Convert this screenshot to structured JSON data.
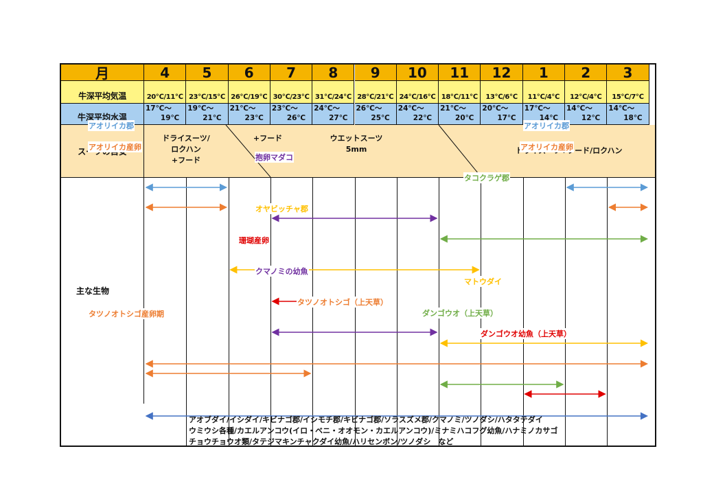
{
  "header": {
    "month_label": "月",
    "months": [
      "4",
      "5",
      "6",
      "7",
      "8",
      "9",
      "10",
      "11",
      "12",
      "1",
      "2",
      "3"
    ],
    "air_label": "牛深平均気温",
    "air_temps": [
      "20℃/11℃",
      "23℃/15℃",
      "26℃/19℃",
      "30℃/23℃",
      "31℃/24℃",
      "28℃/21℃",
      "24℃/16℃",
      "18℃/11℃",
      "13℃/6℃",
      "11℃/4℃",
      "12℃/4℃",
      "15℃/7℃"
    ],
    "water_label": "牛深平均水温",
    "water_temps": [
      "17℃～\n      19℃",
      "19℃～\n      21℃",
      "21℃～\n      23℃",
      "23℃～\n      26℃",
      "24℃～\n      27℃",
      "26℃～\n      25℃",
      "24℃～\n      22℃",
      "21℃～\n      20℃",
      "20℃～\n      17℃",
      "17℃～\n      14℃",
      "14℃～\n      12℃",
      "14℃～\n      18℃"
    ]
  },
  "suit": {
    "label": "スーツの目安",
    "text_drysuit_spring": "ドライスーツ/\nロクハン\n+フード",
    "text_hood": "+フード",
    "text_wetsuit": "ウエットスーツ\n5mm",
    "text_drysuit_winter": "ドライスーツ+フード/ロクハン"
  },
  "creatures": {
    "label": "主な生物",
    "colors": {
      "blue": "#5b9bd5",
      "orange": "#ed7d31",
      "purple": "#7030a0",
      "green": "#70ad47",
      "gold": "#ffc000",
      "red": "#e00000",
      "navy": "#4472c4"
    },
    "arrows": [
      {
        "label": "アオリイカ郡",
        "color": "blue",
        "segments": [
          [
            4,
            5
          ],
          [
            2,
            3
          ]
        ],
        "labels_at": [
          4,
          2
        ]
      },
      {
        "label": "アオリイカ産卵",
        "color": "orange",
        "segments": [
          [
            4,
            5
          ],
          [
            3,
            3
          ]
        ],
        "labels_at": [
          4,
          2
        ]
      },
      {
        "label": "抱卵マダコ",
        "color": "purple",
        "segments": [
          [
            7,
            10
          ]
        ],
        "labels_at": [
          8
        ]
      },
      {
        "label": "タコクラゲ郡",
        "color": "green",
        "segments": [
          [
            11,
            3
          ]
        ],
        "labels_at": [
          1
        ]
      },
      {
        "label": "オヤビッチャ郡",
        "color": "gold",
        "segments": [
          [
            6,
            11
          ]
        ],
        "labels_at": [
          8
        ]
      },
      {
        "label": "珊瑚産卵",
        "color": "red",
        "segments": [
          [
            7,
            8
          ]
        ],
        "labels_at": [
          7
        ]
      },
      {
        "label": "クマノミの幼魚",
        "color": "purple",
        "segments": [
          [
            7,
            10
          ]
        ],
        "labels_at": [
          8
        ]
      },
      {
        "label": "マトウダイ",
        "color": "gold",
        "segments": [
          [
            11,
            3
          ]
        ],
        "labels_at": [
          1
        ]
      },
      {
        "label": "タツノオトシゴ（上天草）",
        "color": "orange",
        "segments": [
          [
            4,
            3
          ]
        ],
        "labels_at": [
          9
        ]
      },
      {
        "label": "タツノオトシゴ産卵期",
        "color": "orange",
        "segments": [
          [
            4,
            7
          ]
        ],
        "labels_at": [
          4
        ]
      },
      {
        "label": "ダンゴウオ（上天草）",
        "color": "green",
        "segments": [
          [
            11,
            1
          ]
        ],
        "labels_at": [
          12
        ]
      },
      {
        "label": "ダンゴウオ幼魚（上天草）",
        "color": "red",
        "segments": [
          [
            1,
            2
          ]
        ],
        "labels_at": [
          1
        ]
      }
    ],
    "species_list": "アオブダイ/イシダイ/キビナゴ郡/イシモチ郡/キビナゴ郡/ソラスズメ郡/クマノミ/ツノダシ/ハタタテダイ\nウミウシ各種/カエルアンコウ(イロ・ベニ・オオモン・カエルアンコウ)/ミナミハコフグ幼魚/ハナミノカサゴ\nチョウチョウオ類/タテジマキンチャクダイ幼魚/ハリセンボン/ツノダシ　など"
  }
}
